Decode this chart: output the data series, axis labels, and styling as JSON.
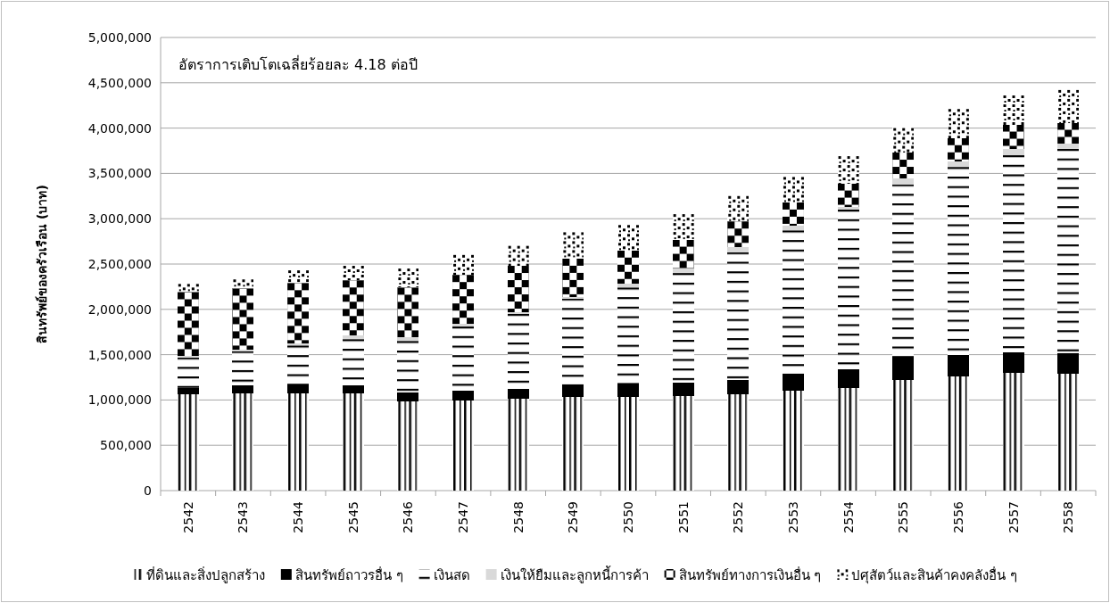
{
  "chart_data": {
    "type": "bar",
    "stacked": true,
    "ylabel": "สินทรัพย์ของครัวเรือน (บาท)",
    "annotations": [
      "อัตราการเติบโตเฉลี่ยร้อยละ 4.18 ต่อปี"
    ],
    "categories": [
      "2542",
      "2543",
      "2544",
      "2545",
      "2546",
      "2547",
      "2548",
      "2549",
      "2550",
      "2551",
      "2552",
      "2553",
      "2554",
      "2555",
      "2556",
      "2557",
      "2558"
    ],
    "ylim": [
      0,
      5000000
    ],
    "yticks": [
      {
        "value": 0,
        "label": "0"
      },
      {
        "value": 500000,
        "label": "500,000"
      },
      {
        "value": 1000000,
        "label": "1,000,000"
      },
      {
        "value": 1500000,
        "label": "1,500,000"
      },
      {
        "value": 2000000,
        "label": "2,000,000"
      },
      {
        "value": 2500000,
        "label": "2,500,000"
      },
      {
        "value": 3000000,
        "label": "3,000,000"
      },
      {
        "value": 3500000,
        "label": "3,500,000"
      },
      {
        "value": 4000000,
        "label": "4,000,000"
      },
      {
        "value": 4500000,
        "label": "4,500,000"
      },
      {
        "value": 5000000,
        "label": "5,000,000"
      }
    ],
    "grid": "y",
    "legend": "bottom",
    "series": [
      {
        "name": "ที่ดินและสิ่งปลูกสร้าง",
        "color": "#000000",
        "values": [
          1060000,
          1070000,
          1070000,
          1070000,
          980000,
          990000,
          1010000,
          1030000,
          1030000,
          1040000,
          1060000,
          1100000,
          1130000,
          1220000,
          1260000,
          1300000,
          1290000
        ]
      },
      {
        "name": "สินทรัพย์ถาวรอื่น ๆ",
        "color": "#000000",
        "values": [
          70000,
          90000,
          90000,
          90000,
          100000,
          110000,
          110000,
          140000,
          140000,
          150000,
          160000,
          180000,
          210000,
          250000,
          240000,
          230000,
          230000
        ]
      },
      {
        "name": "เงินสด",
        "color": "#000000",
        "values": [
          340000,
          380000,
          440000,
          510000,
          570000,
          710000,
          830000,
          950000,
          1070000,
          1210000,
          1410000,
          1590000,
          1760000,
          1910000,
          2070000,
          2170000,
          2250000
        ]
      },
      {
        "name": "เงินให้ยืมและลูกหนี้การค้า",
        "color": "#d9d9d9",
        "values": [
          20000,
          20000,
          20000,
          40000,
          40000,
          30000,
          20000,
          20000,
          40000,
          50000,
          60000,
          50000,
          30000,
          60000,
          60000,
          70000,
          60000
        ]
      },
      {
        "name": "สินทรัพย์ทางการเงินอื่น ๆ",
        "color": "#000000",
        "values": [
          700000,
          670000,
          670000,
          610000,
          550000,
          540000,
          510000,
          420000,
          370000,
          320000,
          280000,
          260000,
          260000,
          290000,
          260000,
          270000,
          230000
        ]
      },
      {
        "name": "ปศุสัตว์และสินค้าคงคลังอื่น ๆ",
        "color": "#000000",
        "values": [
          100000,
          110000,
          150000,
          170000,
          220000,
          230000,
          230000,
          300000,
          290000,
          290000,
          290000,
          290000,
          310000,
          280000,
          330000,
          330000,
          370000
        ]
      }
    ]
  }
}
